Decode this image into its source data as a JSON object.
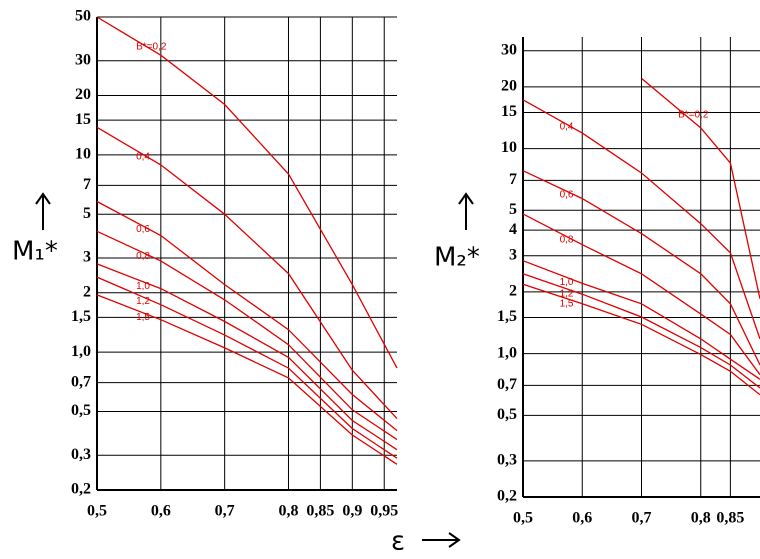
{
  "chart_data": [
    {
      "type": "line",
      "y_label": "M₁*",
      "x_label": "ε",
      "y_log": true,
      "grid": true,
      "x": [
        0.5,
        0.6,
        0.7,
        0.8,
        0.9,
        0.97
      ],
      "xlim": [
        0.5,
        0.97
      ],
      "xticks": [
        {
          "value": 0.5,
          "label": "0,5"
        },
        {
          "value": 0.6,
          "label": "0,6"
        },
        {
          "value": 0.7,
          "label": "0,7"
        },
        {
          "value": 0.8,
          "label": "0,8"
        },
        {
          "value": 0.85,
          "label": "0,85"
        },
        {
          "value": 0.9,
          "label": "0,9"
        },
        {
          "value": 0.95,
          "label": "0,95"
        }
      ],
      "ylim": [
        0.2,
        50
      ],
      "yticks": [
        {
          "value": 0.2,
          "label": "0,2"
        },
        {
          "value": 0.3,
          "label": "0,3"
        },
        {
          "value": 0.5,
          "label": "0,5"
        },
        {
          "value": 0.7,
          "label": "0,7"
        },
        {
          "value": 1.0,
          "label": "1,0"
        },
        {
          "value": 1.5,
          "label": "1,5"
        },
        2,
        3,
        5,
        7,
        10,
        15,
        20,
        30,
        50
      ],
      "series": [
        {
          "name": "B*=0,2",
          "color": "#e00000",
          "values": [
            50,
            32,
            18,
            8,
            2.2,
            0.83
          ]
        },
        {
          "name": "0,4",
          "color": "#e00000",
          "values": [
            13.8,
            8.9,
            5,
            2.5,
            0.81,
            0.46
          ]
        },
        {
          "name": "0,6",
          "color": "#e00000",
          "values": [
            5.8,
            3.9,
            2.2,
            1.3,
            0.61,
            0.4
          ]
        },
        {
          "name": "0,8",
          "color": "#e00000",
          "values": [
            4.1,
            2.9,
            1.84,
            1.09,
            0.51,
            0.36
          ]
        },
        {
          "name": "1,0",
          "color": "#e00000",
          "values": [
            2.8,
            2.1,
            1.43,
            0.94,
            0.45,
            0.32
          ]
        },
        {
          "name": "1,2",
          "color": "#e00000",
          "values": [
            2.4,
            1.74,
            1.22,
            0.83,
            0.41,
            0.29
          ]
        },
        {
          "name": "1,5",
          "color": "#e00000",
          "values": [
            1.95,
            1.46,
            1.05,
            0.74,
            0.38,
            0.27
          ]
        }
      ]
    },
    {
      "type": "line",
      "y_label": "M₂*",
      "y_log": true,
      "grid": true,
      "x": [
        0.5,
        0.6,
        0.7,
        0.8,
        0.85,
        0.9
      ],
      "xlim": [
        0.5,
        0.9
      ],
      "xticks": [
        {
          "value": 0.5,
          "label": "0,5"
        },
        {
          "value": 0.6,
          "label": "0,6"
        },
        {
          "value": 0.7,
          "label": "0,7"
        },
        {
          "value": 0.8,
          "label": "0,8"
        },
        {
          "value": 0.85,
          "label": "0,85"
        }
      ],
      "ylim": [
        0.2,
        35
      ],
      "yticks": [
        {
          "value": 0.2,
          "label": "0,2"
        },
        {
          "value": 0.3,
          "label": "0,3"
        },
        {
          "value": 0.5,
          "label": "0,5"
        },
        {
          "value": 0.7,
          "label": "0,7"
        },
        {
          "value": 1.0,
          "label": "1,0"
        },
        {
          "value": 1.5,
          "label": "1,5"
        },
        2,
        3,
        4,
        5,
        7,
        10,
        15,
        20,
        30
      ],
      "series": [
        {
          "name": "B*=0,2",
          "color": "#e00000",
          "values": [
            null,
            null,
            22,
            12.6,
            8.5,
            1.85
          ]
        },
        {
          "name": "0,4",
          "color": "#e00000",
          "values": [
            17.3,
            11.9,
            7.6,
            4.3,
            3.1,
            1.18
          ]
        },
        {
          "name": "0,6",
          "color": "#e00000",
          "values": [
            7.8,
            5.7,
            3.85,
            2.45,
            1.75,
            0.88
          ]
        },
        {
          "name": "0,8",
          "color": "#e00000",
          "values": [
            4.8,
            3.4,
            2.45,
            1.56,
            1.24,
            0.79
          ]
        },
        {
          "name": "1,0",
          "color": "#e00000",
          "values": [
            2.84,
            2.2,
            1.75,
            1.18,
            0.94,
            0.75
          ]
        },
        {
          "name": "1,2",
          "color": "#e00000",
          "values": [
            2.45,
            1.95,
            1.51,
            1.07,
            0.88,
            0.68
          ]
        },
        {
          "name": "1,5",
          "color": "#e00000",
          "values": [
            2.18,
            1.75,
            1.39,
            0.99,
            0.82,
            0.63
          ]
        }
      ]
    }
  ]
}
